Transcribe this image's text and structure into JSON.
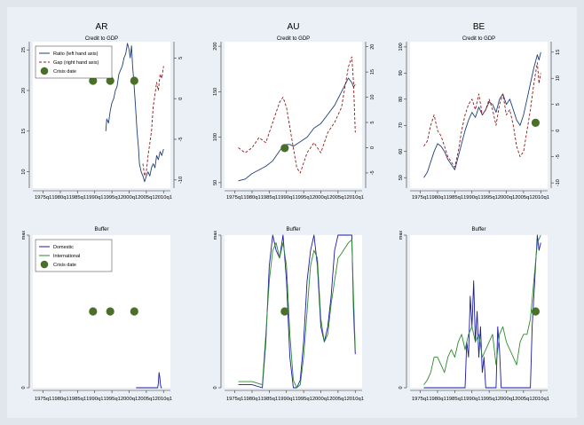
{
  "chart_data": [
    {
      "type": "line",
      "title": "AR",
      "subtitle": "Credit to GDP",
      "x_ticks": [
        "1975q1",
        "1980q1",
        "1985q1",
        "1990q1",
        "1995q1",
        "2000q1",
        "2005q1",
        "2010q1"
      ],
      "xlim": [
        1972,
        2012
      ],
      "left_axis": {
        "range": [
          8,
          26
        ],
        "ticks": [
          "10",
          "15",
          "20",
          "25"
        ]
      },
      "right_axis": {
        "range": [
          -11,
          7
        ],
        "ticks": [
          "-10",
          "-5",
          "0",
          "5"
        ]
      },
      "legend": {
        "position": "top-left",
        "entries": [
          "Ratio (left hand axis)",
          "Gap (right hand axis)",
          "Crisis date"
        ]
      },
      "series": [
        {
          "name": "Ratio (left hand axis)",
          "axis": "left",
          "color": "#1f3f7a",
          "style": "solid",
          "x": [
            1993.2,
            1993.5,
            1994,
            1994.5,
            1995,
            1995.5,
            1996,
            1996.5,
            1997,
            1997.5,
            1998,
            1998.5,
            1999,
            1999.5,
            2000,
            2000.3,
            2000.7,
            2001,
            2001.3,
            2001.7,
            2002,
            2002.3,
            2002.7,
            2003,
            2003.5,
            2004,
            2004.5,
            2005,
            2005.5,
            2006,
            2006.5,
            2007,
            2007.5,
            2008,
            2008.5,
            2009,
            2009.5,
            2010
          ],
          "y": [
            15,
            16.5,
            16,
            17.5,
            18.5,
            19,
            20,
            20.5,
            22,
            22.5,
            23,
            24,
            24.5,
            25.8,
            25,
            24,
            25.5,
            23,
            21.5,
            19,
            17,
            15,
            13,
            11,
            10,
            9.5,
            8.8,
            9.5,
            10,
            9.5,
            10.5,
            11,
            10.5,
            12,
            11.5,
            12.5,
            12,
            12.8
          ]
        },
        {
          "name": "Gap (right hand axis)",
          "axis": "right",
          "color": "#8b1a1a",
          "style": "dashed",
          "x": [
            2004,
            2004.5,
            2005,
            2005.5,
            2006,
            2006.5,
            2007,
            2007.5,
            2008,
            2008.5,
            2009,
            2009.5,
            2010
          ],
          "y": [
            -8,
            -9.5,
            -9,
            -7,
            -5.5,
            -4,
            -1,
            0.5,
            2,
            1,
            3,
            2.5,
            4
          ]
        },
        {
          "name": "Crisis date",
          "type": "scatter",
          "axis": "left",
          "color": "#4a6f28",
          "x": [
            1989.5,
            1994.5,
            2001.5
          ],
          "y": [
            21.2,
            21.2,
            21.2
          ]
        }
      ]
    },
    {
      "type": "line",
      "title": "AU",
      "subtitle": "Credit to GDP",
      "x_ticks": [
        "1975q1",
        "1980q1",
        "1985q1",
        "1990q1",
        "1995q1",
        "2000q1",
        "2005q1",
        "2010q1"
      ],
      "xlim": [
        1972,
        2012
      ],
      "left_axis": {
        "range": [
          44,
          205
        ],
        "ticks": [
          "50",
          "100",
          "150",
          "200"
        ]
      },
      "right_axis": {
        "range": [
          -8,
          21
        ],
        "ticks": [
          "-5",
          "0",
          "5",
          "10",
          "15",
          "20"
        ]
      },
      "series": [
        {
          "name": "Ratio (left hand axis)",
          "axis": "left",
          "color": "#1f3f7a",
          "style": "solid",
          "x": [
            1976,
            1978,
            1980,
            1982,
            1984,
            1986,
            1988,
            1989,
            1990,
            1991,
            1992,
            1994,
            1996,
            1998,
            2000,
            2002,
            2004,
            2006,
            2008,
            2009,
            2009.5,
            2010
          ],
          "y": [
            52,
            54,
            60,
            64,
            68,
            74,
            85,
            90,
            92,
            92,
            90,
            95,
            100,
            110,
            115,
            125,
            135,
            150,
            165,
            160,
            155,
            158
          ]
        },
        {
          "name": "Gap (right hand axis)",
          "axis": "right",
          "color": "#8b1a1a",
          "style": "dashed",
          "x": [
            1976,
            1978,
            1980,
            1982,
            1984,
            1986,
            1987,
            1988,
            1989,
            1990,
            1991,
            1992,
            1993,
            1994,
            1995,
            1996,
            1998,
            2000,
            2002,
            2004,
            2006,
            2008,
            2009,
            2009.5,
            2010
          ],
          "y": [
            0,
            -1,
            0,
            2,
            1,
            5,
            7,
            9,
            10,
            8,
            4,
            0,
            -4,
            -5,
            -3,
            -1,
            1,
            -1,
            3,
            5,
            8,
            16,
            18,
            13,
            3
          ]
        },
        {
          "name": "Crisis date",
          "type": "scatter",
          "axis": "left",
          "color": "#4a6f28",
          "x": [
            1989.5
          ],
          "y": [
            88
          ]
        }
      ]
    },
    {
      "type": "line",
      "title": "BE",
      "subtitle": "Credit to GDP",
      "x_ticks": [
        "1975q1",
        "1980q1",
        "1985q1",
        "1990q1",
        "1995q1",
        "2000q1",
        "2005q1",
        "2010q1"
      ],
      "xlim": [
        1972,
        2012
      ],
      "left_axis": {
        "range": [
          46,
          102
        ],
        "ticks": [
          "50",
          "60",
          "70",
          "80",
          "90",
          "100"
        ]
      },
      "right_axis": {
        "range": [
          -11,
          17
        ],
        "ticks": [
          "-10",
          "-5",
          "0",
          "5",
          "10",
          "15"
        ]
      },
      "series": [
        {
          "name": "Ratio (left hand axis)",
          "axis": "left",
          "color": "#1f3f7a",
          "style": "solid",
          "x": [
            1976,
            1977,
            1978,
            1979,
            1980,
            1981,
            1982,
            1983,
            1984,
            1985,
            1986,
            1987,
            1988,
            1989,
            1990,
            1991,
            1992,
            1993,
            1994,
            1995,
            1996,
            1997,
            1998,
            1999,
            2000,
            2001,
            2002,
            2003,
            2004,
            2005,
            2006,
            2007,
            2008,
            2009,
            2009.5,
            2010
          ],
          "y": [
            50,
            52,
            56,
            60,
            63,
            62,
            60,
            57,
            55,
            53,
            58,
            63,
            68,
            72,
            75,
            73,
            77,
            74,
            76,
            79,
            78,
            75,
            80,
            82,
            78,
            80,
            76,
            72,
            70,
            74,
            80,
            86,
            92,
            97,
            95,
            98
          ]
        },
        {
          "name": "Gap (right hand axis)",
          "axis": "right",
          "color": "#8b1a1a",
          "style": "dashed",
          "x": [
            1976,
            1977,
            1978,
            1979,
            1980,
            1981,
            1982,
            1983,
            1984,
            1985,
            1986,
            1987,
            1988,
            1989,
            1990,
            1991,
            1992,
            1993,
            1994,
            1995,
            1996,
            1997,
            1998,
            1999,
            2000,
            2001,
            2002,
            2003,
            2004,
            2005,
            2006,
            2007,
            2008,
            2009,
            2009.5,
            2010
          ],
          "y": [
            -3,
            -2,
            1,
            3,
            0,
            -1,
            -3,
            -5,
            -6,
            -7,
            -4,
            0,
            3,
            5,
            6,
            4,
            7,
            3,
            4,
            6,
            4,
            1,
            5,
            7,
            3,
            4,
            1,
            -3,
            -5,
            -4,
            0,
            4,
            9,
            13,
            9,
            11
          ]
        },
        {
          "name": "Crisis date",
          "type": "scatter",
          "axis": "left",
          "color": "#4a6f28",
          "x": [
            2008.5
          ],
          "y": [
            71
          ]
        }
      ]
    },
    {
      "type": "line",
      "title": "",
      "subtitle": "Buffer",
      "x_ticks": [
        "1975q1",
        "1980q1",
        "1985q1",
        "1990q1",
        "1995q1",
        "2000q1",
        "2005q1",
        "2010q1"
      ],
      "xlim": [
        1972,
        2012
      ],
      "left_axis": {
        "range": [
          0,
          1
        ],
        "ticks": [
          "0",
          "max"
        ]
      },
      "legend": {
        "position": "top-left",
        "entries": [
          "Domestic",
          "International",
          "Crisis date"
        ]
      },
      "series": [
        {
          "name": "Domestic",
          "color": "#1a1aa6",
          "style": "solid",
          "x": [
            2002,
            2008.3,
            2008.5,
            2008.7,
            2008.9,
            2009.1,
            2009.3,
            2009.5
          ],
          "y": [
            0,
            0,
            0.03,
            0.1,
            0.07,
            0.02,
            0,
            0
          ]
        },
        {
          "name": "Crisis date",
          "type": "scatter",
          "color": "#4a6f28",
          "x": [
            1989.5,
            1994.5,
            2001.5
          ],
          "y": [
            0.5,
            0.5,
            0.5
          ]
        }
      ]
    },
    {
      "type": "line",
      "title": "",
      "subtitle": "Buffer",
      "x_ticks": [
        "1975q1",
        "1980q1",
        "1985q1",
        "1990q1",
        "1995q1",
        "2000q1",
        "2005q1",
        "2010q1"
      ],
      "xlim": [
        1972,
        2012
      ],
      "left_axis": {
        "range": [
          0,
          1
        ],
        "ticks": [
          "0",
          "max"
        ]
      },
      "series": [
        {
          "name": "Domestic",
          "color": "#1a1aa6",
          "style": "solid",
          "x": [
            1976,
            1980,
            1983,
            1984,
            1985,
            1986,
            1987,
            1988,
            1989,
            1990,
            1991,
            1992,
            1993,
            1994,
            1995,
            1996,
            1997,
            1998,
            1999,
            2000,
            2001,
            2002,
            2003,
            2004,
            2005,
            2006,
            2008,
            2009,
            2009.5,
            2010
          ],
          "y": [
            0.02,
            0.02,
            0,
            0.3,
            0.8,
            1,
            0.9,
            0.85,
            1,
            0.7,
            0.2,
            0,
            0,
            0.05,
            0.3,
            0.7,
            0.9,
            1,
            0.8,
            0.4,
            0.3,
            0.4,
            0.6,
            0.9,
            1,
            1,
            1,
            1,
            0.5,
            0.22
          ]
        },
        {
          "name": "International",
          "color": "#2d8a2d",
          "style": "solid",
          "x": [
            1976,
            1980,
            1983,
            1984,
            1985,
            1986,
            1987,
            1988,
            1989,
            1990,
            1991,
            1992,
            1993,
            1994,
            1995,
            1996,
            1997,
            1998,
            1999,
            2000,
            2001,
            2002,
            2003,
            2004,
            2005,
            2006,
            2008,
            2009,
            2009.5,
            2010
          ],
          "y": [
            0.04,
            0.04,
            0.02,
            0.35,
            0.7,
            0.9,
            0.95,
            0.85,
            0.95,
            0.8,
            0.35,
            0.05,
            0,
            0.02,
            0.2,
            0.5,
            0.8,
            0.9,
            0.85,
            0.45,
            0.3,
            0.35,
            0.55,
            0.7,
            0.85,
            0.88,
            0.95,
            0.97,
            0.6,
            0.25
          ]
        },
        {
          "name": "Crisis date",
          "type": "scatter",
          "color": "#4a6f28",
          "x": [
            1989.5
          ],
          "y": [
            0.5
          ]
        }
      ]
    },
    {
      "type": "line",
      "title": "",
      "subtitle": "Buffer",
      "x_ticks": [
        "1975q1",
        "1980q1",
        "1985q1",
        "1990q1",
        "1995q1",
        "2000q1",
        "2005q1",
        "2010q1"
      ],
      "xlim": [
        1972,
        2012
      ],
      "left_axis": {
        "range": [
          0,
          1
        ],
        "ticks": [
          "0",
          "max"
        ]
      },
      "series": [
        {
          "name": "Domestic",
          "color": "#1a1aa6",
          "style": "solid",
          "x": [
            1976,
            1988,
            1988.5,
            1989,
            1989.5,
            1990,
            1990.5,
            1991,
            1991.5,
            1992,
            1992.5,
            1993,
            1993.5,
            1994,
            1995,
            1996,
            1997,
            1997.5,
            1998,
            1998.5,
            1999,
            2000,
            2007,
            2007.5,
            2008,
            2008.5,
            2009,
            2009.5,
            2010
          ],
          "y": [
            0,
            0,
            0.3,
            0.2,
            0.6,
            0.4,
            0.7,
            0.3,
            0.5,
            0.2,
            0.4,
            0.1,
            0.2,
            0,
            0,
            0,
            0,
            0.4,
            0.25,
            0,
            0,
            0,
            0,
            0.4,
            0.6,
            0.8,
            1,
            0.9,
            0.95
          ]
        },
        {
          "name": "International",
          "color": "#2d8a2d",
          "style": "solid",
          "x": [
            1976,
            1977,
            1978,
            1979,
            1980,
            1981,
            1982,
            1983,
            1984,
            1985,
            1986,
            1987,
            1988,
            1989,
            1990,
            1991,
            1992,
            1993,
            1994,
            1995,
            1996,
            1997,
            1998,
            1999,
            2000,
            2001,
            2002,
            2003,
            2004,
            2005,
            2006,
            2007,
            2008,
            2009,
            2010
          ],
          "y": [
            0.02,
            0.05,
            0.1,
            0.2,
            0.2,
            0.15,
            0.1,
            0.2,
            0.25,
            0.2,
            0.3,
            0.35,
            0.25,
            0.35,
            0.4,
            0.3,
            0.35,
            0.2,
            0.25,
            0.3,
            0.35,
            0.15,
            0.35,
            0.4,
            0.3,
            0.25,
            0.2,
            0.15,
            0.3,
            0.35,
            0.35,
            0.45,
            0.7,
            0.95,
            1
          ]
        },
        {
          "name": "Crisis date",
          "type": "scatter",
          "color": "#4a6f28",
          "x": [
            2008.5
          ],
          "y": [
            0.5
          ]
        }
      ]
    }
  ]
}
